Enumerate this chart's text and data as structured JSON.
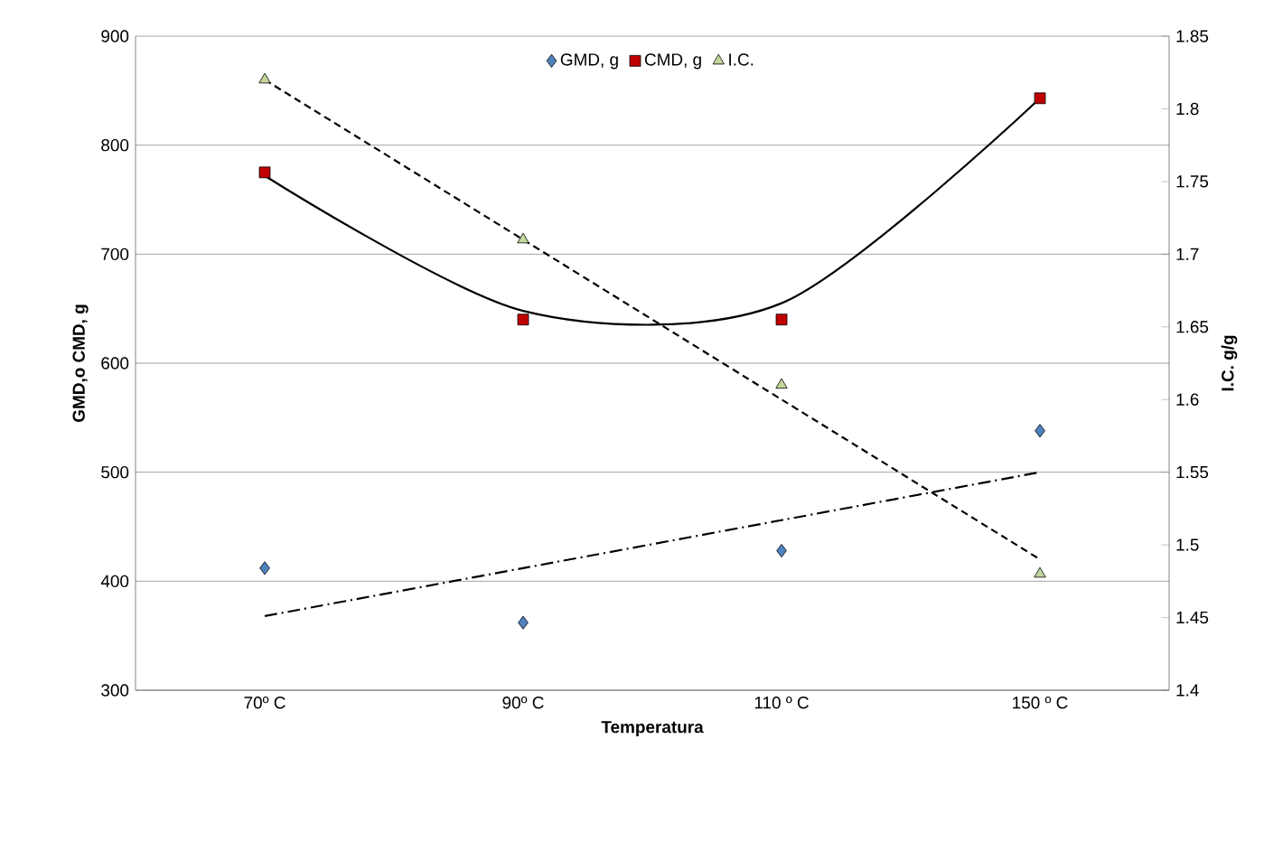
{
  "chart_data": {
    "type": "scatter",
    "xlabel": "Temperatura",
    "ylabel": "GMD,o CMD, g",
    "y2label": "I.C. g/g",
    "categories": [
      "70º C",
      "90º C",
      "110 º C",
      "150 º C"
    ],
    "ylim": [
      300,
      900
    ],
    "yticks": [
      300,
      400,
      500,
      600,
      700,
      800,
      900
    ],
    "y2lim": [
      1.4,
      1.85
    ],
    "y2ticks": [
      1.4,
      1.45,
      1.5,
      1.55,
      1.6,
      1.65,
      1.7,
      1.75,
      1.8,
      1.85
    ],
    "grid": "y",
    "legend": "top",
    "series": [
      {
        "name": "GMD, g",
        "marker": "diamond",
        "color": "#4f81bd",
        "values": [
          412,
          362,
          428,
          538
        ]
      },
      {
        "name": "CMD, g",
        "marker": "square",
        "color": "#c00000",
        "values": [
          775,
          640,
          640,
          843
        ]
      },
      {
        "name": "I.C.",
        "marker": "triangle",
        "color": "#c3d69b",
        "axis": "y2",
        "values": [
          1.82,
          1.71,
          1.61,
          1.48
        ]
      },
      {
        "type": "line",
        "line_style": "dashdot",
        "color": "#000000",
        "values": [
          368,
          412,
          456,
          500
        ]
      },
      {
        "type": "line",
        "line_style": "solid",
        "color": "#000000",
        "values": [
          772,
          648,
          655,
          843
        ]
      },
      {
        "type": "line",
        "line_style": "dashed",
        "color": "#000000",
        "axis": "y2",
        "values": [
          1.82,
          1.71,
          1.6,
          1.49
        ]
      }
    ]
  }
}
